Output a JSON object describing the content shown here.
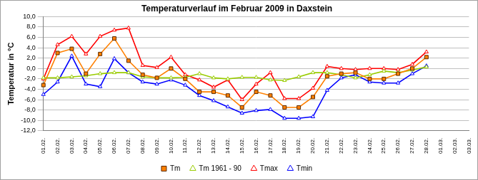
{
  "chart_data": {
    "type": "line",
    "title": "Temperaturverlauf im Februar 2009 in Daxstein",
    "y_label": "Temperatur in °C",
    "categories": [
      "01.02.",
      "02.02.",
      "03.02.",
      "04.02.",
      "05.02.",
      "06.02.",
      "07.02.",
      "08.02.",
      "09.02.",
      "10.02.",
      "11.02.",
      "12.02.",
      "13.02.",
      "14.02.",
      "15.02.",
      "16.02.",
      "17.02.",
      "18.02.",
      "19.02.",
      "20.02.",
      "21.02.",
      "22.02.",
      "23.02.",
      "24.02.",
      "25.02.",
      "26.02.",
      "27.02.",
      "28.02.",
      "01.03.",
      "02.03.",
      "03.03."
    ],
    "series": [
      {
        "name": "Tm",
        "color": "#ff8000",
        "marker": "square",
        "values": [
          -3.2,
          3.0,
          3.8,
          -1.0,
          2.8,
          5.8,
          1.5,
          -1.2,
          -1.8,
          0.0,
          -2.0,
          -4.5,
          -4.5,
          -5.2,
          -7.5,
          -4.5,
          -5.2,
          -7.5,
          -7.5,
          -5.5,
          -1.5,
          -1.0,
          -0.8,
          -2.0,
          -2.0,
          -1.0,
          0.0,
          2.2,
          null,
          null,
          null
        ]
      },
      {
        "name": "Tm 1961 - 90",
        "color": "#99cc00",
        "marker": "triangle",
        "values": [
          -1.8,
          -1.8,
          -1.6,
          -1.4,
          -1.0,
          -0.8,
          -0.8,
          -1.6,
          -1.8,
          -1.8,
          -1.7,
          -1.0,
          -1.8,
          -2.0,
          -1.7,
          -1.7,
          -2.2,
          -2.3,
          -1.6,
          -0.8,
          -0.8,
          -1.2,
          -1.8,
          -1.2,
          -0.5,
          -0.8,
          -0.3,
          0.3,
          null,
          null,
          null
        ]
      },
      {
        "name": "Tmax",
        "color": "#ff0000",
        "marker": "triangle",
        "values": [
          -2.0,
          4.6,
          6.2,
          2.8,
          6.2,
          7.4,
          7.8,
          0.6,
          0.2,
          2.2,
          -1.2,
          -2.2,
          -3.6,
          -2.2,
          -6.0,
          -3.0,
          -0.8,
          -5.8,
          -5.8,
          -3.8,
          0.4,
          0.0,
          -0.2,
          0.0,
          0.0,
          -0.2,
          0.8,
          3.2,
          null,
          null,
          null
        ]
      },
      {
        "name": "Tmin",
        "color": "#0000ff",
        "marker": "triangle",
        "values": [
          -5.0,
          -2.6,
          2.4,
          -3.0,
          -3.5,
          1.9,
          -0.8,
          -2.6,
          -3.0,
          -2.2,
          -3.2,
          -5.2,
          -6.2,
          -7.4,
          -8.6,
          -8.1,
          -7.9,
          -9.6,
          -9.6,
          -9.3,
          -4.2,
          -1.8,
          -1.2,
          -2.6,
          -2.8,
          -2.8,
          -1.0,
          0.5,
          null,
          null,
          null
        ]
      }
    ],
    "ylim": [
      -12,
      10
    ],
    "yticks": [
      {
        "value": -12,
        "label": "-12,0"
      },
      {
        "value": -10,
        "label": "-10,0"
      },
      {
        "value": -8,
        "label": "-8,0"
      },
      {
        "value": -6,
        "label": "-6,0"
      },
      {
        "value": -4,
        "label": "-4,0"
      },
      {
        "value": -2,
        "label": "-2,0"
      },
      {
        "value": 0,
        "label": "0,0"
      },
      {
        "value": 2,
        "label": "2,0"
      },
      {
        "value": 4,
        "label": "4,0"
      },
      {
        "value": 6,
        "label": "6,0"
      },
      {
        "value": 8,
        "label": "8,0"
      },
      {
        "value": 10,
        "label": "10,0"
      }
    ],
    "grid": true,
    "legend": "bottom"
  }
}
